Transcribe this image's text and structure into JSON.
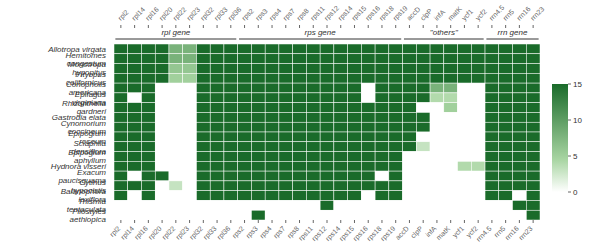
{
  "chart_data": {
    "type": "heatmap",
    "rows": [
      "Allotropa virgata",
      "Hemitomes congestum",
      "Monotropa hypopitys",
      "Pityopus californicus",
      "Conopholis americana",
      "Epifagus virginiana",
      "Rhizanthella gardneri",
      "Gastrodia elata",
      "Cynomorium coccineum",
      "Epipogium roseum",
      "Sciaphila densiflora",
      "Epipogium aphyllum",
      "Hydnora visseri",
      "Exacum paucisquama",
      "Cytinus hypocistis",
      "Balanophora laxiflora",
      "Thismia tentaculata",
      "Pilostyles aethiopica"
    ],
    "categories": [
      "rpl2",
      "rpl14",
      "rpl16",
      "rpl20",
      "rpl22",
      "rpl23",
      "rpl32",
      "rpl33",
      "rpl36",
      "rps2",
      "rps3",
      "rps4",
      "rps7",
      "rps8",
      "rps11",
      "rps12",
      "rps14",
      "rps15",
      "rps16",
      "rps18",
      "rps19",
      "accD",
      "clpP",
      "infA",
      "matK",
      "ycf1",
      "ycf2",
      "rrn4.5",
      "rrn5",
      "rrn16",
      "rrn23"
    ],
    "groups": [
      {
        "name": "rpl gene",
        "columns": [
          "rpl2",
          "rpl14",
          "rpl16",
          "rpl20",
          "rpl22",
          "rpl23",
          "rpl32",
          "rpl33",
          "rpl36"
        ]
      },
      {
        "name": "rps gene",
        "columns": [
          "rps2",
          "rps3",
          "rps4",
          "rps7",
          "rps8",
          "rps11",
          "rps12",
          "rps14",
          "rps15",
          "rps16",
          "rps18",
          "rps19"
        ]
      },
      {
        "name": "\"others\"",
        "columns": [
          "accD",
          "clpP",
          "infA",
          "matK",
          "ycf1",
          "ycf2"
        ]
      },
      {
        "name": "rrn gene",
        "columns": [
          "rrn4.5",
          "rrn5",
          "rrn16",
          "rrn23"
        ]
      }
    ],
    "values": [
      [
        15,
        15,
        15,
        15,
        8,
        8,
        15,
        15,
        15,
        15,
        15,
        15,
        15,
        15,
        15,
        15,
        15,
        15,
        15,
        15,
        15,
        15,
        15,
        15,
        15,
        15,
        15,
        15,
        15,
        15,
        15
      ],
      [
        15,
        15,
        15,
        15,
        8,
        8,
        15,
        15,
        15,
        15,
        15,
        15,
        15,
        15,
        15,
        15,
        15,
        15,
        15,
        15,
        15,
        15,
        15,
        15,
        15,
        15,
        15,
        15,
        15,
        15,
        15
      ],
      [
        15,
        15,
        15,
        15,
        6,
        6,
        15,
        15,
        15,
        15,
        15,
        15,
        15,
        15,
        15,
        15,
        15,
        15,
        15,
        15,
        15,
        15,
        15,
        15,
        15,
        15,
        15,
        15,
        15,
        15,
        15
      ],
      [
        15,
        15,
        15,
        15,
        5,
        5,
        15,
        15,
        15,
        15,
        15,
        15,
        15,
        15,
        15,
        15,
        15,
        15,
        15,
        15,
        15,
        15,
        15,
        15,
        15,
        15,
        15,
        15,
        15,
        15,
        15
      ],
      [
        15,
        15,
        15,
        0,
        0,
        0,
        15,
        15,
        15,
        15,
        15,
        15,
        15,
        15,
        15,
        15,
        15,
        15,
        0,
        15,
        15,
        15,
        15,
        8,
        8,
        0,
        0,
        15,
        15,
        15,
        15
      ],
      [
        15,
        0,
        15,
        0,
        0,
        0,
        15,
        15,
        15,
        15,
        15,
        15,
        15,
        15,
        15,
        15,
        15,
        15,
        0,
        15,
        15,
        15,
        15,
        4,
        4,
        0,
        0,
        15,
        15,
        15,
        15
      ],
      [
        15,
        15,
        15,
        0,
        0,
        0,
        15,
        15,
        15,
        15,
        15,
        15,
        15,
        15,
        15,
        15,
        15,
        15,
        15,
        15,
        15,
        15,
        0,
        0,
        5,
        0,
        0,
        15,
        15,
        15,
        15
      ],
      [
        15,
        15,
        15,
        0,
        0,
        0,
        15,
        15,
        15,
        15,
        15,
        15,
        15,
        15,
        15,
        15,
        15,
        15,
        15,
        15,
        15,
        15,
        15,
        0,
        0,
        0,
        0,
        15,
        15,
        15,
        15
      ],
      [
        15,
        15,
        15,
        0,
        0,
        0,
        15,
        15,
        15,
        15,
        15,
        15,
        15,
        15,
        15,
        15,
        15,
        15,
        15,
        15,
        15,
        15,
        15,
        0,
        0,
        0,
        0,
        15,
        15,
        15,
        15
      ],
      [
        15,
        15,
        15,
        0,
        0,
        0,
        15,
        15,
        15,
        15,
        15,
        15,
        15,
        15,
        15,
        15,
        15,
        15,
        15,
        15,
        15,
        15,
        0,
        0,
        0,
        0,
        0,
        15,
        15,
        15,
        15
      ],
      [
        15,
        15,
        15,
        0,
        0,
        0,
        15,
        15,
        15,
        15,
        15,
        15,
        15,
        15,
        15,
        15,
        15,
        15,
        15,
        15,
        15,
        15,
        3,
        0,
        0,
        0,
        0,
        15,
        15,
        15,
        15
      ],
      [
        15,
        15,
        15,
        0,
        0,
        0,
        15,
        15,
        15,
        15,
        15,
        15,
        15,
        15,
        15,
        15,
        15,
        15,
        15,
        15,
        15,
        0,
        0,
        0,
        0,
        0,
        0,
        15,
        15,
        15,
        15
      ],
      [
        15,
        15,
        15,
        0,
        0,
        0,
        15,
        15,
        15,
        15,
        15,
        15,
        15,
        15,
        15,
        15,
        15,
        15,
        15,
        15,
        15,
        0,
        0,
        0,
        0,
        4,
        4,
        15,
        15,
        15,
        15
      ],
      [
        15,
        0,
        15,
        15,
        0,
        0,
        15,
        15,
        15,
        15,
        15,
        15,
        15,
        15,
        15,
        15,
        15,
        15,
        15,
        0,
        15,
        0,
        0,
        0,
        0,
        0,
        0,
        15,
        15,
        15,
        15
      ],
      [
        15,
        15,
        15,
        0,
        3,
        0,
        15,
        15,
        15,
        15,
        15,
        15,
        15,
        15,
        15,
        15,
        15,
        15,
        15,
        15,
        15,
        0,
        0,
        0,
        0,
        0,
        0,
        15,
        15,
        15,
        15
      ],
      [
        15,
        0,
        15,
        0,
        0,
        0,
        15,
        15,
        15,
        15,
        15,
        15,
        15,
        15,
        15,
        15,
        15,
        15,
        0,
        15,
        15,
        0,
        0,
        0,
        0,
        0,
        0,
        15,
        15,
        0,
        15
      ],
      [
        0,
        0,
        0,
        0,
        0,
        0,
        0,
        0,
        0,
        0,
        0,
        0,
        0,
        0,
        0,
        15,
        0,
        0,
        0,
        0,
        0,
        0,
        0,
        0,
        0,
        0,
        0,
        0,
        0,
        15,
        15
      ],
      [
        0,
        0,
        0,
        0,
        0,
        0,
        0,
        0,
        0,
        0,
        15,
        0,
        0,
        0,
        0,
        0,
        0,
        0,
        0,
        0,
        0,
        0,
        0,
        0,
        0,
        0,
        0,
        0,
        0,
        0,
        15
      ]
    ],
    "colors": [
      "#ffffff",
      "#a8d5a2",
      "#1a6b2a"
    ],
    "colorbar_range": [
      0,
      15
    ],
    "colorbar_ticks": [
      0,
      5,
      10,
      15
    ]
  }
}
